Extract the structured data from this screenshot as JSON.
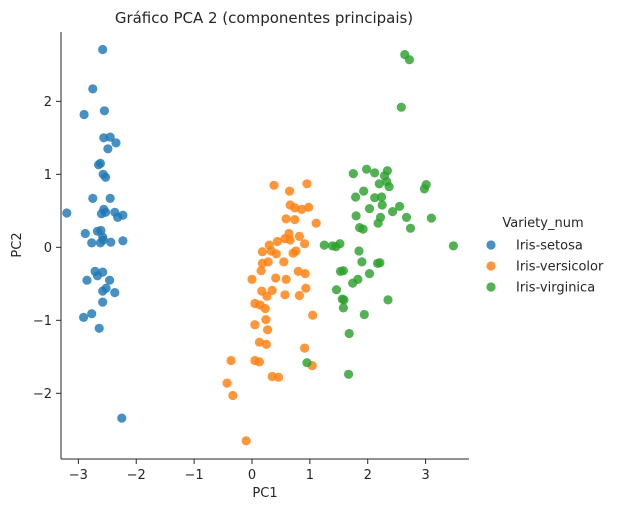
{
  "chart_data": {
    "type": "scatter",
    "title": "Gráfico PCA 2 (componentes principais)",
    "xlabel": "PC1",
    "ylabel": "PC2",
    "xlim": [
      -3.3,
      3.75
    ],
    "ylim": [
      -2.9,
      2.95
    ],
    "xticks": [
      -3,
      -2,
      -1,
      0,
      1,
      2,
      3
    ],
    "yticks": [
      -2,
      -1,
      0,
      1,
      2
    ],
    "xtick_labels": [
      "−3",
      "−2",
      "−1",
      "0",
      "1",
      "2",
      "3"
    ],
    "ytick_labels": [
      "−2",
      "−1",
      "0",
      "1",
      "2"
    ],
    "grid": false,
    "legend": {
      "title": "Variety_num",
      "position": "right"
    },
    "series": [
      {
        "name": "Iris-setosa",
        "color": "#1f77b4",
        "points": [
          [
            -2.58,
            2.71
          ],
          [
            -2.75,
            2.17
          ],
          [
            -2.55,
            1.87
          ],
          [
            -2.9,
            1.82
          ],
          [
            -2.56,
            1.5
          ],
          [
            -2.45,
            1.51
          ],
          [
            -2.35,
            1.43
          ],
          [
            -2.49,
            1.35
          ],
          [
            -2.65,
            1.13
          ],
          [
            -2.62,
            1.15
          ],
          [
            -2.57,
            1.0
          ],
          [
            -2.53,
            0.96
          ],
          [
            -2.75,
            0.67
          ],
          [
            -2.45,
            0.67
          ],
          [
            -2.37,
            0.48
          ],
          [
            -2.23,
            0.44
          ],
          [
            -2.56,
            0.52
          ],
          [
            -2.53,
            0.48
          ],
          [
            -2.6,
            0.46
          ],
          [
            -2.32,
            0.41
          ],
          [
            -3.2,
            0.47
          ],
          [
            -2.67,
            0.22
          ],
          [
            -2.61,
            0.23
          ],
          [
            -2.88,
            0.19
          ],
          [
            -2.58,
            0.14
          ],
          [
            -2.57,
            0.1
          ],
          [
            -2.77,
            0.06
          ],
          [
            -2.62,
            0.06
          ],
          [
            -2.44,
            0.07
          ],
          [
            -2.23,
            0.09
          ],
          [
            -2.58,
            -0.34
          ],
          [
            -2.71,
            -0.33
          ],
          [
            -2.67,
            -0.39
          ],
          [
            -2.85,
            -0.45
          ],
          [
            -2.46,
            -0.45
          ],
          [
            -2.58,
            -0.6
          ],
          [
            -2.52,
            -0.56
          ],
          [
            -2.37,
            -0.62
          ],
          [
            -2.58,
            -0.75
          ],
          [
            -2.77,
            -0.91
          ],
          [
            -2.91,
            -0.96
          ],
          [
            -2.64,
            -1.11
          ],
          [
            -2.25,
            -2.34
          ]
        ]
      },
      {
        "name": "Iris-versicolor",
        "color": "#ff7f0e",
        "points": [
          [
            0.38,
            0.85
          ],
          [
            0.65,
            0.77
          ],
          [
            0.95,
            0.87
          ],
          [
            0.74,
            0.54
          ],
          [
            0.86,
            0.52
          ],
          [
            0.66,
            0.58
          ],
          [
            0.59,
            0.39
          ],
          [
            0.74,
            0.38
          ],
          [
            0.98,
            0.55
          ],
          [
            1.11,
            0.33
          ],
          [
            0.66,
            0.1
          ],
          [
            0.57,
            0.12
          ],
          [
            0.44,
            0.08
          ],
          [
            0.82,
            0.15
          ],
          [
            0.64,
            0.19
          ],
          [
            0.3,
            0.03
          ],
          [
            0.18,
            -0.06
          ],
          [
            0.33,
            -0.05
          ],
          [
            0.42,
            -0.09
          ],
          [
            0.71,
            -0.08
          ],
          [
            0.76,
            -0.05
          ],
          [
            0.91,
            0.05
          ],
          [
            0.55,
            -0.2
          ],
          [
            0.28,
            -0.2
          ],
          [
            0.18,
            -0.22
          ],
          [
            0.16,
            -0.32
          ],
          [
            0.0,
            -0.44
          ],
          [
            0.41,
            -0.42
          ],
          [
            0.59,
            -0.44
          ],
          [
            0.8,
            -0.33
          ],
          [
            0.92,
            -0.36
          ],
          [
            0.17,
            -0.6
          ],
          [
            0.35,
            -0.59
          ],
          [
            0.57,
            -0.65
          ],
          [
            0.82,
            -0.66
          ],
          [
            0.93,
            -0.56
          ],
          [
            0.05,
            -0.77
          ],
          [
            0.14,
            -0.79
          ],
          [
            0.23,
            -0.84
          ],
          [
            0.26,
            -0.67
          ],
          [
            0.24,
            -0.99
          ],
          [
            0.05,
            -1.06
          ],
          [
            0.27,
            -1.13
          ],
          [
            1.05,
            -0.93
          ],
          [
            0.13,
            -1.3
          ],
          [
            0.25,
            -1.33
          ],
          [
            0.91,
            -1.38
          ],
          [
            -0.36,
            -1.55
          ],
          [
            0.05,
            -1.55
          ],
          [
            0.13,
            -1.57
          ],
          [
            1.04,
            -1.62
          ],
          [
            0.35,
            -1.77
          ],
          [
            0.46,
            -1.78
          ],
          [
            -0.43,
            -1.86
          ],
          [
            -0.33,
            -2.03
          ],
          [
            -0.1,
            -2.65
          ]
        ]
      },
      {
        "name": "Iris-virginica",
        "color": "#2ca02c",
        "points": [
          [
            2.64,
            2.64
          ],
          [
            2.72,
            2.57
          ],
          [
            2.58,
            1.92
          ],
          [
            1.98,
            1.07
          ],
          [
            2.12,
            1.02
          ],
          [
            2.34,
            1.05
          ],
          [
            2.29,
            0.98
          ],
          [
            3.01,
            0.86
          ],
          [
            1.75,
            1.01
          ],
          [
            2.2,
            0.87
          ],
          [
            2.33,
            0.9
          ],
          [
            2.37,
            0.83
          ],
          [
            2.98,
            0.8
          ],
          [
            1.93,
            0.77
          ],
          [
            2.55,
            0.56
          ],
          [
            1.79,
            0.69
          ],
          [
            2.24,
            0.69
          ],
          [
            2.12,
            0.68
          ],
          [
            2.25,
            0.58
          ],
          [
            2.43,
            0.49
          ],
          [
            2.03,
            0.53
          ],
          [
            2.22,
            0.41
          ],
          [
            2.67,
            0.41
          ],
          [
            2.18,
            0.33
          ],
          [
            1.8,
            0.43
          ],
          [
            2.74,
            0.26
          ],
          [
            3.1,
            0.4
          ],
          [
            1.86,
            0.27
          ],
          [
            1.92,
            0.25
          ],
          [
            3.48,
            0.02
          ],
          [
            1.52,
            0.05
          ],
          [
            1.45,
            0.01
          ],
          [
            1.39,
            0.02
          ],
          [
            1.25,
            0.03
          ],
          [
            1.85,
            -0.05
          ],
          [
            1.9,
            -0.2
          ],
          [
            1.53,
            -0.33
          ],
          [
            1.58,
            -0.32
          ],
          [
            2.21,
            -0.21
          ],
          [
            2.17,
            -0.22
          ],
          [
            2.03,
            -0.36
          ],
          [
            1.83,
            -0.44
          ],
          [
            1.74,
            -0.49
          ],
          [
            1.46,
            -0.58
          ],
          [
            2.35,
            -0.72
          ],
          [
            1.56,
            -0.71
          ],
          [
            1.59,
            -0.72
          ],
          [
            1.58,
            -0.83
          ],
          [
            1.94,
            -0.92
          ],
          [
            1.68,
            -1.18
          ],
          [
            0.95,
            -1.58
          ],
          [
            1.67,
            -1.74
          ]
        ]
      }
    ]
  }
}
